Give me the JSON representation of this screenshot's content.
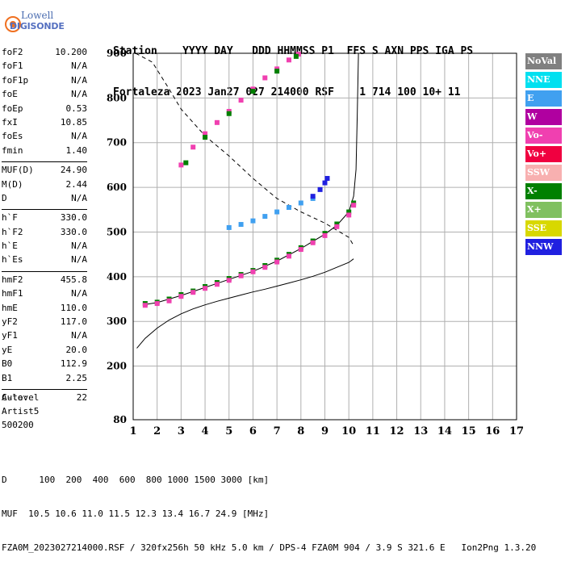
{
  "logo": {
    "line1": "Lowell",
    "line2": "DIGISONDE"
  },
  "header": {
    "line1": "Station    YYYY DAY   DDD HHMMSS P1  FFS S AXN PPS IGA PS",
    "line2": "Fortaleza 2023 Jan27 027 214000 RSF    1 714 100 10+ 11"
  },
  "params": {
    "group1": [
      {
        "k": "foF2",
        "v": "10.200"
      },
      {
        "k": "foF1",
        "v": "N/A"
      },
      {
        "k": "foF1p",
        "v": "N/A"
      },
      {
        "k": "foE",
        "v": "N/A"
      },
      {
        "k": "foEp",
        "v": "0.53"
      },
      {
        "k": "fxI",
        "v": "10.85"
      },
      {
        "k": "foEs",
        "v": "N/A"
      },
      {
        "k": "fmin",
        "v": "1.40"
      }
    ],
    "group2": [
      {
        "k": "MUF(D)",
        "v": "24.90"
      },
      {
        "k": "M(D)",
        "v": "2.44"
      },
      {
        "k": "D",
        "v": "N/A"
      }
    ],
    "group3": [
      {
        "k": "h`F",
        "v": "330.0"
      },
      {
        "k": "h`F2",
        "v": "330.0"
      },
      {
        "k": "h`E",
        "v": "N/A"
      },
      {
        "k": "h`Es",
        "v": "N/A"
      }
    ],
    "group4": [
      {
        "k": "hmF2",
        "v": "455.8"
      },
      {
        "k": "hmF1",
        "v": "N/A"
      },
      {
        "k": "hmE",
        "v": "110.0"
      },
      {
        "k": "yF2",
        "v": "117.0"
      },
      {
        "k": "yF1",
        "v": "N/A"
      },
      {
        "k": "yE",
        "v": "20.0"
      },
      {
        "k": "B0",
        "v": "112.9"
      },
      {
        "k": "B1",
        "v": "2.25"
      }
    ],
    "group5": [
      {
        "k": "C-level",
        "v": "22"
      }
    ]
  },
  "auto": {
    "line1": "Auto:",
    "line2": "Artist5",
    "line3": "500200"
  },
  "footer": {
    "line1": "D      100  200  400  600  800 1000 1500 3000 [km]",
    "line2": "MUF  10.5 10.6 11.0 11.5 12.3 13.4 16.7 24.9 [MHz]",
    "line3": "FZA0M_2023027214000.RSF / 320fx256h 50 kHz 5.0 km / DPS-4 FZA0M 904 / 3.9 S 321.6 E   Ion2Png 1.3.20"
  },
  "legend": [
    {
      "label": "NoVal",
      "color": "#808080"
    },
    {
      "label": "NNE",
      "color": "#00e0f0"
    },
    {
      "label": "E",
      "color": "#40a0f0"
    },
    {
      "label": "W",
      "color": "#b000a0"
    },
    {
      "label": "Vo-",
      "color": "#f040b0"
    },
    {
      "label": "Vo+",
      "color": "#f00040"
    },
    {
      "label": "SSW",
      "color": "#f8b0b0"
    },
    {
      "label": "X-",
      "color": "#008000"
    },
    {
      "label": "X+",
      "color": "#80c060"
    },
    {
      "label": "SSE",
      "color": "#d8d800"
    },
    {
      "label": "NNW",
      "color": "#2020e0"
    }
  ],
  "chart_data": {
    "type": "scatter",
    "xlim": [
      1,
      17
    ],
    "ylim": [
      80,
      900
    ],
    "xticks": [
      "1",
      "2",
      "3",
      "4",
      "5",
      "6",
      "7",
      "8",
      "9",
      "10",
      "11",
      "12",
      "13",
      "14",
      "15",
      "16",
      "17"
    ],
    "yticks": [
      "80",
      "200",
      "300",
      "400",
      "500",
      "600",
      "700",
      "800",
      "900"
    ],
    "grid": true,
    "series": [
      {
        "name": "X-",
        "color": "#008000",
        "points": [
          [
            1.5,
            340
          ],
          [
            2,
            343
          ],
          [
            2.5,
            350
          ],
          [
            3,
            360
          ],
          [
            3.5,
            368
          ],
          [
            4,
            378
          ],
          [
            4.5,
            387
          ],
          [
            5,
            396
          ],
          [
            5.5,
            405
          ],
          [
            6,
            414
          ],
          [
            6.5,
            425
          ],
          [
            7,
            437
          ],
          [
            7.5,
            450
          ],
          [
            8,
            465
          ],
          [
            8.5,
            480
          ],
          [
            9,
            497
          ],
          [
            9.5,
            518
          ],
          [
            10,
            545
          ],
          [
            10.2,
            565
          ]
        ]
      },
      {
        "name": "Vo-",
        "color": "#f040b0",
        "points": [
          [
            1.5,
            336
          ],
          [
            2,
            340
          ],
          [
            2.5,
            346
          ],
          [
            3,
            356
          ],
          [
            3.5,
            365
          ],
          [
            4,
            374
          ],
          [
            4.5,
            383
          ],
          [
            5,
            392
          ],
          [
            5.5,
            402
          ],
          [
            6,
            411
          ],
          [
            6.5,
            421
          ],
          [
            7,
            433
          ],
          [
            7.5,
            446
          ],
          [
            8,
            461
          ],
          [
            8.5,
            476
          ],
          [
            9,
            492
          ],
          [
            9.5,
            512
          ],
          [
            10,
            538
          ],
          [
            10.2,
            560
          ]
        ]
      },
      {
        "name": "Vo- upper",
        "color": "#f040b0",
        "points": [
          [
            3,
            650
          ],
          [
            3.5,
            690
          ],
          [
            4,
            720
          ],
          [
            4.5,
            745
          ],
          [
            5,
            770
          ],
          [
            5.5,
            795
          ],
          [
            6,
            820
          ],
          [
            6.5,
            845
          ],
          [
            7,
            865
          ],
          [
            7.5,
            885
          ],
          [
            7.9,
            898
          ]
        ]
      },
      {
        "name": "X- upper",
        "color": "#008000",
        "points": [
          [
            3.2,
            655
          ],
          [
            4,
            712
          ],
          [
            5,
            765
          ],
          [
            6,
            815
          ],
          [
            7,
            860
          ],
          [
            7.8,
            893
          ]
        ]
      },
      {
        "name": "E",
        "color": "#40a0f0",
        "points": [
          [
            5,
            510
          ],
          [
            5.5,
            517
          ],
          [
            6,
            525
          ],
          [
            6.5,
            535
          ],
          [
            7,
            545
          ],
          [
            7.5,
            555
          ],
          [
            8,
            565
          ],
          [
            8.5,
            575
          ]
        ]
      },
      {
        "name": "NNW",
        "color": "#2020e0",
        "points": [
          [
            8.5,
            580
          ],
          [
            8.8,
            595
          ],
          [
            9,
            610
          ],
          [
            9.1,
            620
          ]
        ]
      }
    ],
    "lines": [
      {
        "name": "profile",
        "style": "solid",
        "points": [
          [
            1.15,
            240
          ],
          [
            1.5,
            262
          ],
          [
            2,
            285
          ],
          [
            2.5,
            303
          ],
          [
            3,
            317
          ],
          [
            3.5,
            328
          ],
          [
            4,
            337
          ],
          [
            4.5,
            345
          ],
          [
            5,
            352
          ],
          [
            5.5,
            359
          ],
          [
            6,
            366
          ],
          [
            6.5,
            372
          ],
          [
            7,
            379
          ],
          [
            7.5,
            386
          ],
          [
            8,
            393
          ],
          [
            8.5,
            401
          ],
          [
            9,
            410
          ],
          [
            9.5,
            421
          ],
          [
            10,
            432
          ],
          [
            10.2,
            440
          ]
        ]
      },
      {
        "name": "trace-fit",
        "style": "solid",
        "points": [
          [
            1.5,
            338
          ],
          [
            2,
            342
          ],
          [
            3,
            358
          ],
          [
            4,
            376
          ],
          [
            5,
            394
          ],
          [
            6,
            412
          ],
          [
            7,
            435
          ],
          [
            8,
            463
          ],
          [
            9,
            495
          ],
          [
            9.5,
            515
          ],
          [
            10,
            545
          ],
          [
            10.2,
            580
          ],
          [
            10.3,
            640
          ],
          [
            10.35,
            760
          ],
          [
            10.4,
            900
          ]
        ]
      },
      {
        "name": "model",
        "style": "dashed",
        "points": [
          [
            1.1,
            900
          ],
          [
            1.8,
            880
          ],
          [
            2.5,
            820
          ],
          [
            3,
            775
          ],
          [
            4,
            715
          ],
          [
            5,
            670
          ],
          [
            6,
            620
          ],
          [
            7,
            575
          ],
          [
            8,
            545
          ],
          [
            9,
            520
          ],
          [
            10,
            488
          ],
          [
            10.2,
            470
          ]
        ]
      }
    ]
  }
}
